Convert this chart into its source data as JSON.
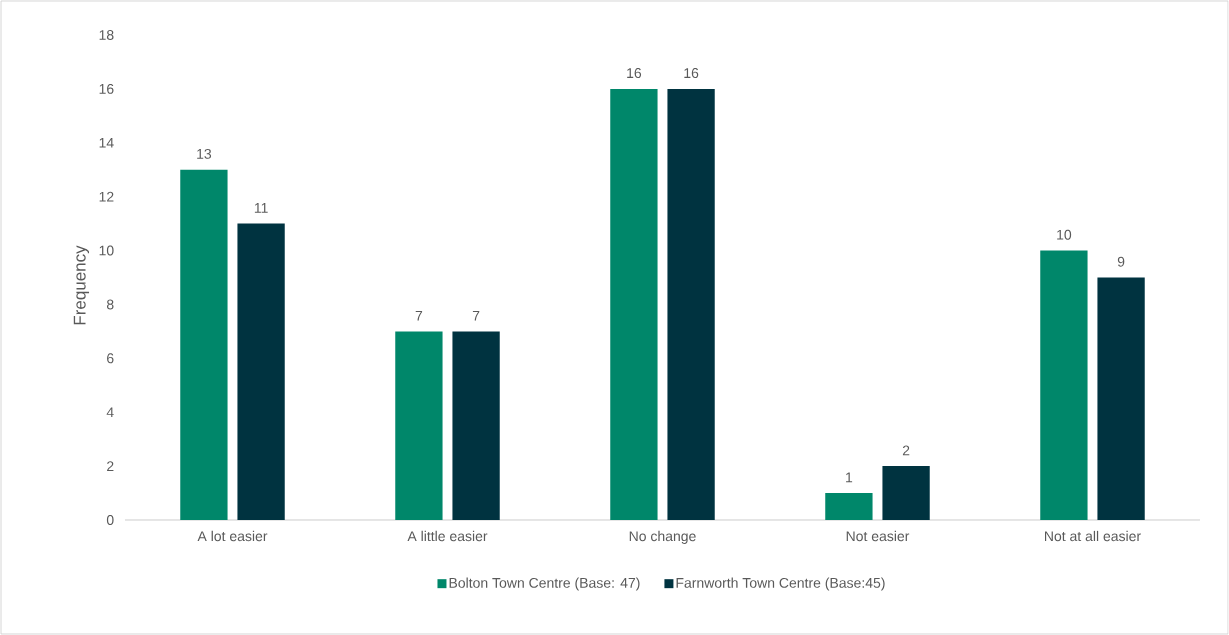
{
  "chart_data": {
    "type": "bar",
    "ylabel": "Frequency",
    "categories": [
      "A lot easier",
      "A little easier",
      "No change",
      "Not easier",
      "Not at all easier"
    ],
    "series": [
      {
        "name": "Bolton Town Centre (Base: 47)",
        "color": "#00876a",
        "values": [
          13,
          7,
          16,
          1,
          10
        ]
      },
      {
        "name": "Farnworth Town Centre (Base:45)",
        "color": "#003340",
        "values": [
          11,
          7,
          16,
          2,
          9
        ]
      }
    ],
    "ylim": [
      0,
      18
    ],
    "yticks": [
      0,
      2,
      4,
      6,
      8,
      10,
      12,
      14,
      16,
      18
    ],
    "data_labels": true,
    "grid": false,
    "legend": "bottom"
  }
}
